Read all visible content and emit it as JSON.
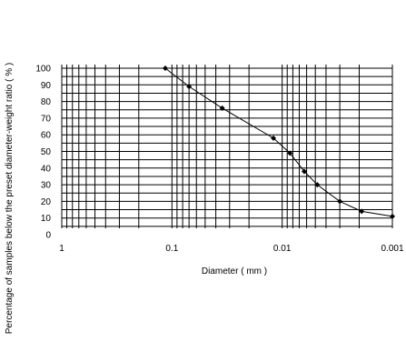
{
  "chart_data": {
    "type": "line",
    "x_scale": "log",
    "x_reversed": true,
    "xlabel": "Diameter ( mm )",
    "ylabel": "Percentage of samples below the preset diameter-weight ratio  ( % )",
    "xlim": [
      1,
      0.001
    ],
    "ylim": [
      0,
      100
    ],
    "x_ticks": [
      "1",
      "0.1",
      "0.01",
      "0.001"
    ],
    "y_ticks": [
      "0",
      "10",
      "20",
      "30",
      "40",
      "50",
      "60",
      "70",
      "80",
      "90",
      "100"
    ],
    "grid": true,
    "legend": "none",
    "series": [
      {
        "x": [
          0.115,
          0.07,
          0.035,
          0.012,
          0.0085,
          0.0063,
          0.0048,
          0.003,
          0.0019,
          0.001
        ],
        "y": [
          100,
          89,
          76,
          58,
          49,
          38,
          30,
          20,
          14,
          11
        ]
      }
    ],
    "colors": {
      "line": "#000000",
      "grid": "#000000",
      "marker": "#000000"
    }
  }
}
